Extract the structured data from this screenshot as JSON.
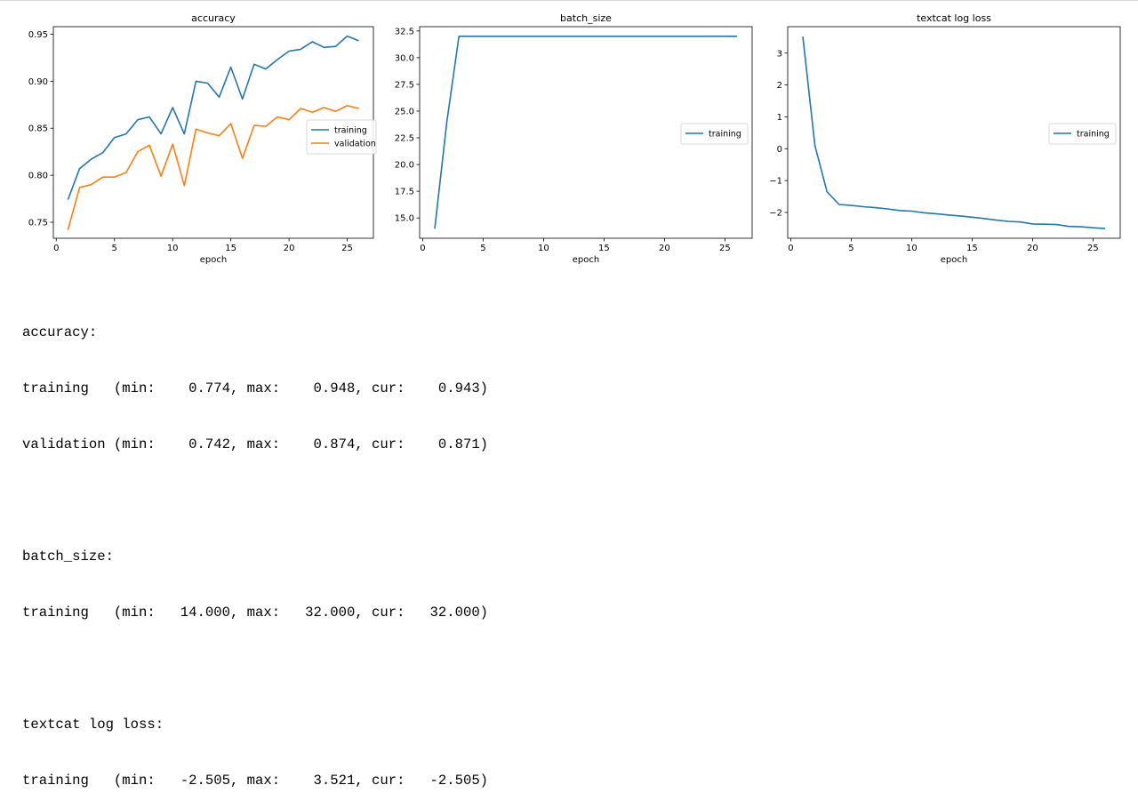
{
  "chart_data": [
    {
      "type": "line",
      "title": "accuracy",
      "xlabel": "epoch",
      "ylabel": "",
      "xlim": [
        -0.25,
        27.25
      ],
      "ylim": [
        0.733,
        0.958
      ],
      "xticks": [
        0,
        5,
        10,
        15,
        20,
        25
      ],
      "yticks": [
        0.75,
        0.8,
        0.85,
        0.9,
        0.95
      ],
      "yticks_labels": [
        "0.75",
        "0.80",
        "0.85",
        "0.90",
        "0.95"
      ],
      "legend": "center-right",
      "x": [
        1,
        2,
        3,
        4,
        5,
        6,
        7,
        8,
        9,
        10,
        11,
        12,
        13,
        14,
        15,
        16,
        17,
        18,
        19,
        20,
        21,
        22,
        23,
        24,
        25,
        26
      ],
      "series": [
        {
          "name": "training",
          "color": "#1f77b4",
          "values": [
            0.774,
            0.807,
            0.817,
            0.824,
            0.84,
            0.844,
            0.859,
            0.862,
            0.844,
            0.872,
            0.844,
            0.9,
            0.898,
            0.883,
            0.915,
            0.881,
            0.918,
            0.913,
            0.923,
            0.932,
            0.934,
            0.942,
            0.936,
            0.937,
            0.948,
            0.943
          ]
        },
        {
          "name": "validation",
          "color": "#ff7f0e",
          "values": [
            0.742,
            0.787,
            0.79,
            0.798,
            0.798,
            0.803,
            0.825,
            0.832,
            0.799,
            0.833,
            0.789,
            0.849,
            0.845,
            0.842,
            0.855,
            0.818,
            0.853,
            0.852,
            0.862,
            0.859,
            0.871,
            0.867,
            0.872,
            0.868,
            0.874,
            0.871
          ]
        }
      ]
    },
    {
      "type": "line",
      "title": "batch_size",
      "xlabel": "epoch",
      "ylabel": "",
      "xlim": [
        -0.25,
        27.25
      ],
      "ylim": [
        13.1,
        32.9
      ],
      "xticks": [
        0,
        5,
        10,
        15,
        20,
        25
      ],
      "yticks": [
        15.0,
        17.5,
        20.0,
        22.5,
        25.0,
        27.5,
        30.0,
        32.5
      ],
      "yticks_labels": [
        "15.0",
        "17.5",
        "20.0",
        "22.5",
        "25.0",
        "27.5",
        "30.0",
        "32.5"
      ],
      "legend": "center-right",
      "x": [
        1,
        2,
        3,
        4,
        5,
        6,
        7,
        8,
        9,
        10,
        11,
        12,
        13,
        14,
        15,
        16,
        17,
        18,
        19,
        20,
        21,
        22,
        23,
        24,
        25,
        26
      ],
      "series": [
        {
          "name": "training",
          "color": "#1f77b4",
          "values": [
            14,
            24,
            32,
            32,
            32,
            32,
            32,
            32,
            32,
            32,
            32,
            32,
            32,
            32,
            32,
            32,
            32,
            32,
            32,
            32,
            32,
            32,
            32,
            32,
            32,
            32
          ]
        }
      ]
    },
    {
      "type": "line",
      "title": "textcat log loss",
      "xlabel": "epoch",
      "ylabel": "",
      "xlim": [
        -0.25,
        27.25
      ],
      "ylim": [
        -2.81,
        3.83
      ],
      "xticks": [
        0,
        5,
        10,
        15,
        20,
        25
      ],
      "yticks": [
        -2,
        -1,
        0,
        1,
        2,
        3
      ],
      "yticks_labels": [
        "−2",
        "−1",
        "0",
        "1",
        "2",
        "3"
      ],
      "legend": "center-right",
      "x": [
        1,
        2,
        3,
        4,
        5,
        6,
        7,
        8,
        9,
        10,
        11,
        12,
        13,
        14,
        15,
        16,
        17,
        18,
        19,
        20,
        21,
        22,
        23,
        24,
        25,
        26
      ],
      "series": [
        {
          "name": "training",
          "color": "#1f77b4",
          "values": [
            3.521,
            0.1,
            -1.35,
            -1.75,
            -1.78,
            -1.82,
            -1.85,
            -1.89,
            -1.94,
            -1.96,
            -2.01,
            -2.04,
            -2.08,
            -2.11,
            -2.15,
            -2.19,
            -2.24,
            -2.28,
            -2.3,
            -2.36,
            -2.37,
            -2.38,
            -2.44,
            -2.45,
            -2.48,
            -2.505
          ]
        }
      ]
    }
  ],
  "summary": {
    "accuracy_header": "accuracy:",
    "accuracy_training": "training   (min:    0.774, max:    0.948, cur:    0.943)",
    "accuracy_validation": "validation (min:    0.742, max:    0.874, cur:    0.871)",
    "batch_header": "batch_size:",
    "batch_training": "training   (min:   14.000, max:   32.000, cur:   32.000)",
    "loss_header": "textcat log loss:",
    "loss_training": "training   (min:   -2.505, max:    3.521, cur:   -2.505)"
  }
}
